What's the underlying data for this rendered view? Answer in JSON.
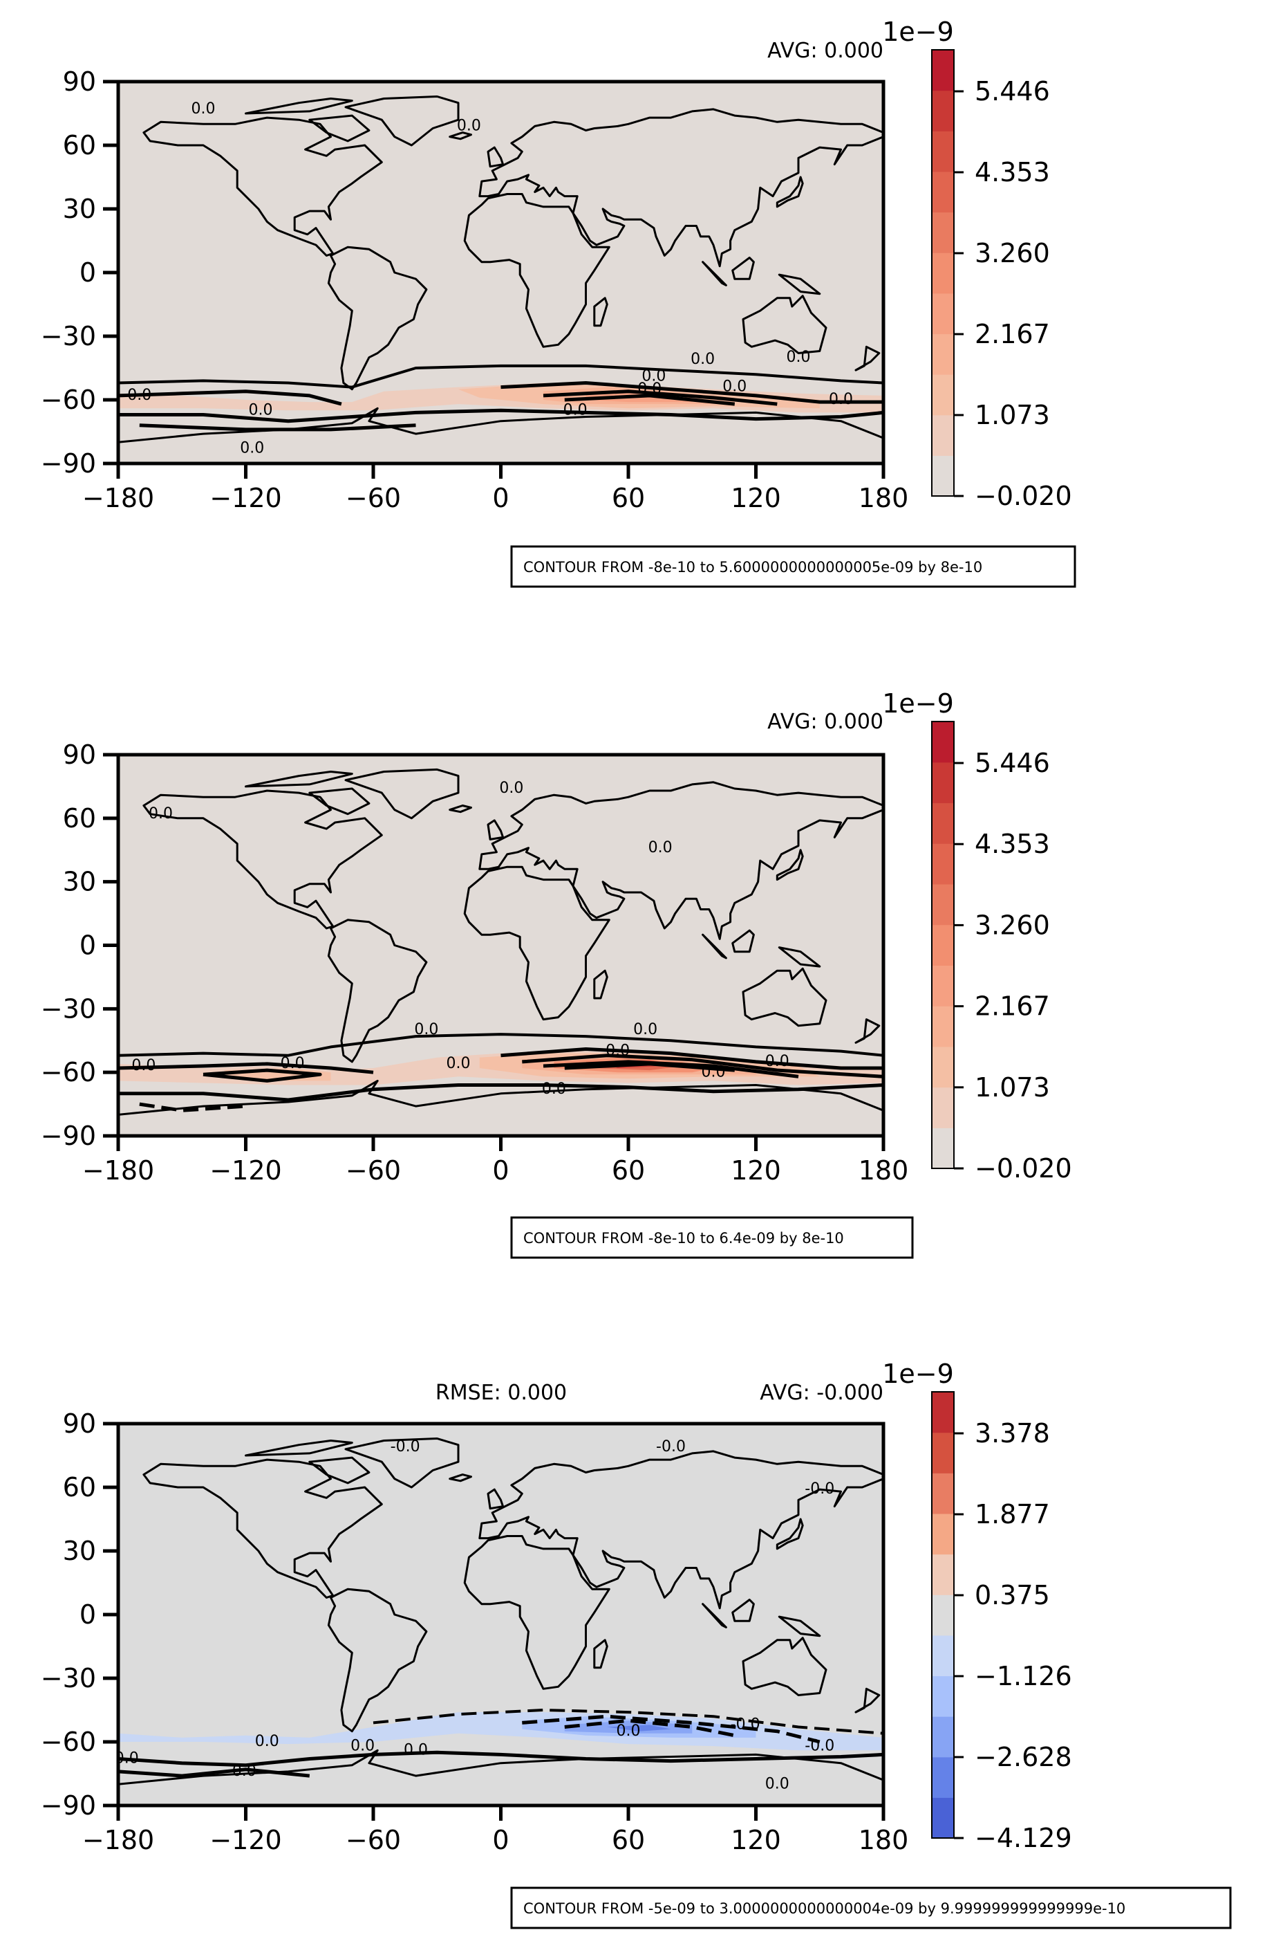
{
  "chart_data": [
    {
      "type": "contour",
      "title": "",
      "avg_label": "AVG: 0.000",
      "rmse_label": "",
      "xlim": [
        -180,
        180
      ],
      "ylim": [
        -90,
        90
      ],
      "xticks": [
        "−180",
        "−120",
        "−60",
        "0",
        "60",
        "120",
        "180"
      ],
      "yticks": [
        "90",
        "60",
        "30",
        "0",
        "−30",
        "−60",
        "−90"
      ],
      "colorbar": {
        "exponent": "1e−9",
        "ticks": [
          "5.446",
          "4.353",
          "3.260",
          "2.167",
          "1.073",
          "−0.020"
        ],
        "palette": [
          "#e1dbd7",
          "#eeccbd",
          "#f4bfa4",
          "#f6b092",
          "#f5a082",
          "#f28f70",
          "#e97b60",
          "#e1654f",
          "#d65141",
          "#c93935",
          "#bb1d2e"
        ]
      },
      "contour_labels": [
        "0.0",
        "0.0",
        "0.0",
        "0.0",
        "0.0",
        "0.0",
        "0.0",
        "0.0",
        "0.0",
        "0.0",
        "0.0",
        "0.0"
      ],
      "note": "CONTOUR FROM -8e-10 to 5.6000000000000005e-09 by 8e-10"
    },
    {
      "type": "contour",
      "title": "",
      "avg_label": "AVG: 0.000",
      "rmse_label": "",
      "xlim": [
        -180,
        180
      ],
      "ylim": [
        -90,
        90
      ],
      "xticks": [
        "−180",
        "−120",
        "−60",
        "0",
        "60",
        "120",
        "180"
      ],
      "yticks": [
        "90",
        "60",
        "30",
        "0",
        "−30",
        "−60",
        "−90"
      ],
      "colorbar": {
        "exponent": "1e−9",
        "ticks": [
          "5.446",
          "4.353",
          "3.260",
          "2.167",
          "1.073",
          "−0.020"
        ],
        "palette": [
          "#e1dbd7",
          "#eeccbd",
          "#f4bfa4",
          "#f6b092",
          "#f5a082",
          "#f28f70",
          "#e97b60",
          "#e1654f",
          "#d65141",
          "#c93935",
          "#bb1d2e"
        ]
      },
      "contour_labels": [
        "0.0",
        "0.0",
        "0.0",
        "0.0",
        "0.0",
        "0.0",
        "0.0",
        "0.0",
        "0.0",
        "0.0",
        "0.0",
        "0.0"
      ],
      "note": "CONTOUR FROM -8e-10 to 6.4e-09 by 8e-10"
    },
    {
      "type": "contour",
      "title": "",
      "avg_label": "AVG: -0.000",
      "rmse_label": "RMSE: 0.000",
      "xlim": [
        -180,
        180
      ],
      "ylim": [
        -90,
        90
      ],
      "xticks": [
        "−180",
        "−120",
        "−60",
        "0",
        "60",
        "120",
        "180"
      ],
      "yticks": [
        "90",
        "60",
        "30",
        "0",
        "−30",
        "−60",
        "−90"
      ],
      "colorbar": {
        "exponent": "1e−9",
        "ticks": [
          "3.378",
          "1.877",
          "0.375",
          "−1.126",
          "−2.628",
          "−4.129"
        ],
        "palette": [
          "#4a62d6",
          "#6482e8",
          "#87a4f4",
          "#a8c1fb",
          "#c6d6f6",
          "#dcdcdc",
          "#f0cbb9",
          "#f4a886",
          "#e87d63",
          "#d5523f",
          "#c12e31"
        ]
      },
      "contour_labels": [
        "0.0",
        "0.0",
        "0.0",
        "0.0",
        "0.0",
        "-0.0",
        "-0.0",
        "-0.0",
        "-0.0",
        "-0.0",
        "-0.0",
        "0.0"
      ],
      "note": "CONTOUR FROM -5e-09 to 3.0000000000000004e-09 by 9.999999999999999e-10"
    }
  ]
}
